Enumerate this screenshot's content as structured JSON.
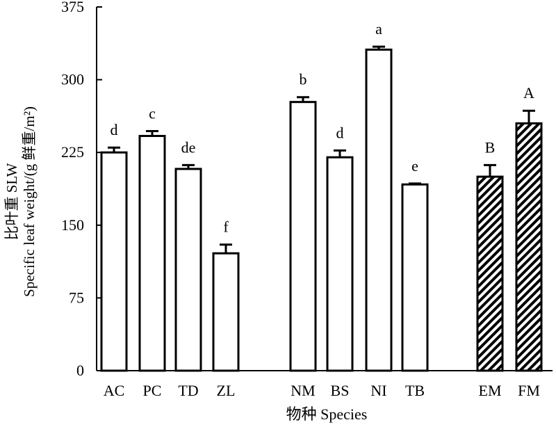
{
  "chart_data": {
    "type": "bar",
    "ylabel_line1": "比叶重 SLW",
    "ylabel_line2": "Specific leaf weight/(g 鲜重/m²)",
    "xlabel": "物种 Species",
    "ylim": [
      0,
      375
    ],
    "yticks": [
      "0",
      "75",
      "150",
      "225",
      "300",
      "375"
    ],
    "categories": [
      "AC",
      "PC",
      "TD",
      "ZL",
      "NM",
      "BS",
      "NI",
      "TB",
      "EM",
      "FM"
    ],
    "values": [
      225,
      242,
      208,
      121,
      277,
      220,
      331,
      192,
      200,
      255
    ],
    "errors": [
      5,
      5,
      4,
      9,
      5,
      7,
      3,
      1,
      12,
      13
    ],
    "significance_letters": [
      "d",
      "c",
      "de",
      "f",
      "b",
      "d",
      "a",
      "e",
      "B",
      "A"
    ],
    "fill": [
      "plain",
      "plain",
      "plain",
      "plain",
      "plain",
      "plain",
      "plain",
      "plain",
      "hatched",
      "hatched"
    ],
    "groups": [
      [
        "AC",
        "PC",
        "TD",
        "ZL"
      ],
      [
        "NM",
        "BS",
        "NI",
        "TB"
      ],
      [
        "EM",
        "FM"
      ]
    ],
    "colors": {
      "bar_fill": "#ffffff",
      "bar_stroke": "#000000",
      "hatch": "#000000"
    },
    "grid": false,
    "legend": "none"
  }
}
